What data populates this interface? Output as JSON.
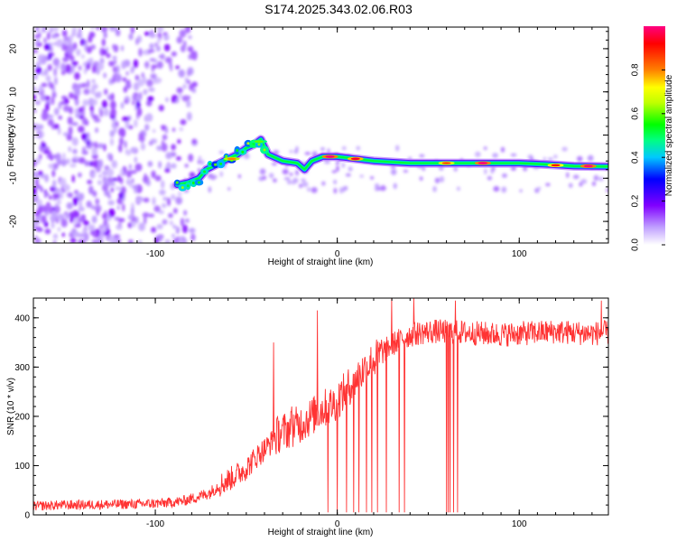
{
  "title": "S174.2025.343.02.06.R03",
  "chart_data": [
    {
      "type": "heatmap",
      "title": "S174.2025.343.02.06.R03",
      "xlabel": "Height of straight line (km)",
      "ylabel": "Frequency (Hz)",
      "xlim": [
        -167,
        149
      ],
      "ylim": [
        -25,
        25
      ],
      "xticks": [
        -100,
        0,
        100
      ],
      "yticks": [
        -20,
        -10,
        0,
        10,
        20
      ],
      "colorbar": {
        "label": "Normalized spectral amplitude",
        "range": [
          0,
          1
        ],
        "ticks": [
          "0.0",
          "0.2",
          "0.4",
          "0.6",
          "0.8"
        ],
        "colors": [
          "#ffffff",
          "#c0a0ff",
          "#8000ff",
          "#0000ff",
          "#00c8ff",
          "#00ff80",
          "#00ff00",
          "#c0ff00",
          "#ffff00",
          "#ff8000",
          "#ff0000",
          "#ff0080"
        ]
      },
      "ridge": {
        "points": [
          {
            "x": -88,
            "y": -11.5
          },
          {
            "x": -82,
            "y": -11
          },
          {
            "x": -76,
            "y": -10
          },
          {
            "x": -72,
            "y": -8
          },
          {
            "x": -65,
            "y": -6.5
          },
          {
            "x": -60,
            "y": -5.5
          },
          {
            "x": -55,
            "y": -4.5
          },
          {
            "x": -50,
            "y": -3
          },
          {
            "x": -45,
            "y": -2
          },
          {
            "x": -42,
            "y": -1
          },
          {
            "x": -38,
            "y": -4.5
          },
          {
            "x": -30,
            "y": -6
          },
          {
            "x": -22,
            "y": -6.5
          },
          {
            "x": -18,
            "y": -8
          },
          {
            "x": -14,
            "y": -6
          },
          {
            "x": -8,
            "y": -5
          },
          {
            "x": 0,
            "y": -5
          },
          {
            "x": 10,
            "y": -5.5
          },
          {
            "x": 20,
            "y": -6
          },
          {
            "x": 40,
            "y": -6.5
          },
          {
            "x": 60,
            "y": -6.5
          },
          {
            "x": 80,
            "y": -6.5
          },
          {
            "x": 100,
            "y": -6.5
          },
          {
            "x": 115,
            "y": -6.8
          },
          {
            "x": 130,
            "y": -7.2
          },
          {
            "x": 149,
            "y": -7.3
          }
        ],
        "hot_spots": [
          {
            "x": -58,
            "y": -5.5,
            "amp": 0.8
          },
          {
            "x": -43,
            "y": -1.5,
            "amp": 0.6
          },
          {
            "x": -4,
            "y": -5,
            "amp": 1.0
          },
          {
            "x": 10,
            "y": -5.5,
            "amp": 0.95
          },
          {
            "x": 60,
            "y": -6.5,
            "amp": 0.85
          },
          {
            "x": 80,
            "y": -6.5,
            "amp": 1.0
          },
          {
            "x": 120,
            "y": -7,
            "amp": 0.9
          },
          {
            "x": 138,
            "y": -7.2,
            "amp": 1.0
          }
        ]
      },
      "noise_region": {
        "x_range": [
          -167,
          -78
        ],
        "y_range": [
          -25,
          25
        ],
        "amplitude": "low (purple speckle)"
      }
    },
    {
      "type": "line",
      "xlabel": "Height of straight line (km)",
      "ylabel": "SNR (10 * v/v)",
      "xlim": [
        -167,
        149
      ],
      "ylim": [
        0,
        440
      ],
      "xticks": [
        -100,
        0,
        100
      ],
      "yticks": [
        0,
        100,
        200,
        300,
        400
      ],
      "color": "#ff3333",
      "series": [
        {
          "name": "SNR",
          "x": [
            -167,
            -150,
            -130,
            -110,
            -95,
            -85,
            -78,
            -70,
            -65,
            -58,
            -50,
            -44,
            -38,
            -32,
            -26,
            -20,
            -14,
            -8,
            -2,
            4,
            10,
            16,
            22,
            28,
            34,
            40,
            46,
            52,
            60,
            70,
            80,
            90,
            100,
            110,
            120,
            130,
            140,
            149
          ],
          "y": [
            18,
            20,
            21,
            22,
            24,
            28,
            35,
            45,
            60,
            75,
            95,
            120,
            140,
            165,
            175,
            185,
            200,
            215,
            225,
            250,
            275,
            300,
            320,
            340,
            355,
            365,
            370,
            372,
            372,
            370,
            368,
            366,
            368,
            370,
            372,
            370,
            368,
            370
          ],
          "noise_amplitude": 25,
          "spikes_up": [
            {
              "x": -11,
              "y": 415
            },
            {
              "x": -35,
              "y": 350
            },
            {
              "x": -25,
              "y": 220
            },
            {
              "x": 30,
              "y": 440
            },
            {
              "x": 42,
              "y": 440
            },
            {
              "x": 65,
              "y": 435
            },
            {
              "x": 145,
              "y": 435
            }
          ],
          "dropouts": [
            {
              "x": -5,
              "y": 5
            },
            {
              "x": 0,
              "y": 5
            },
            {
              "x": 5,
              "y": 5
            },
            {
              "x": 9,
              "y": 5
            },
            {
              "x": 12,
              "y": 5
            },
            {
              "x": 16,
              "y": 5
            },
            {
              "x": 19,
              "y": 5
            },
            {
              "x": 22,
              "y": 5
            },
            {
              "x": 27,
              "y": 5
            },
            {
              "x": 34,
              "y": 5
            },
            {
              "x": 37,
              "y": 5
            },
            {
              "x": 60,
              "y": 5
            },
            {
              "x": 61,
              "y": 5
            },
            {
              "x": 62,
              "y": 5
            },
            {
              "x": 64,
              "y": 5
            },
            {
              "x": 66,
              "y": 5
            }
          ]
        }
      ]
    }
  ]
}
